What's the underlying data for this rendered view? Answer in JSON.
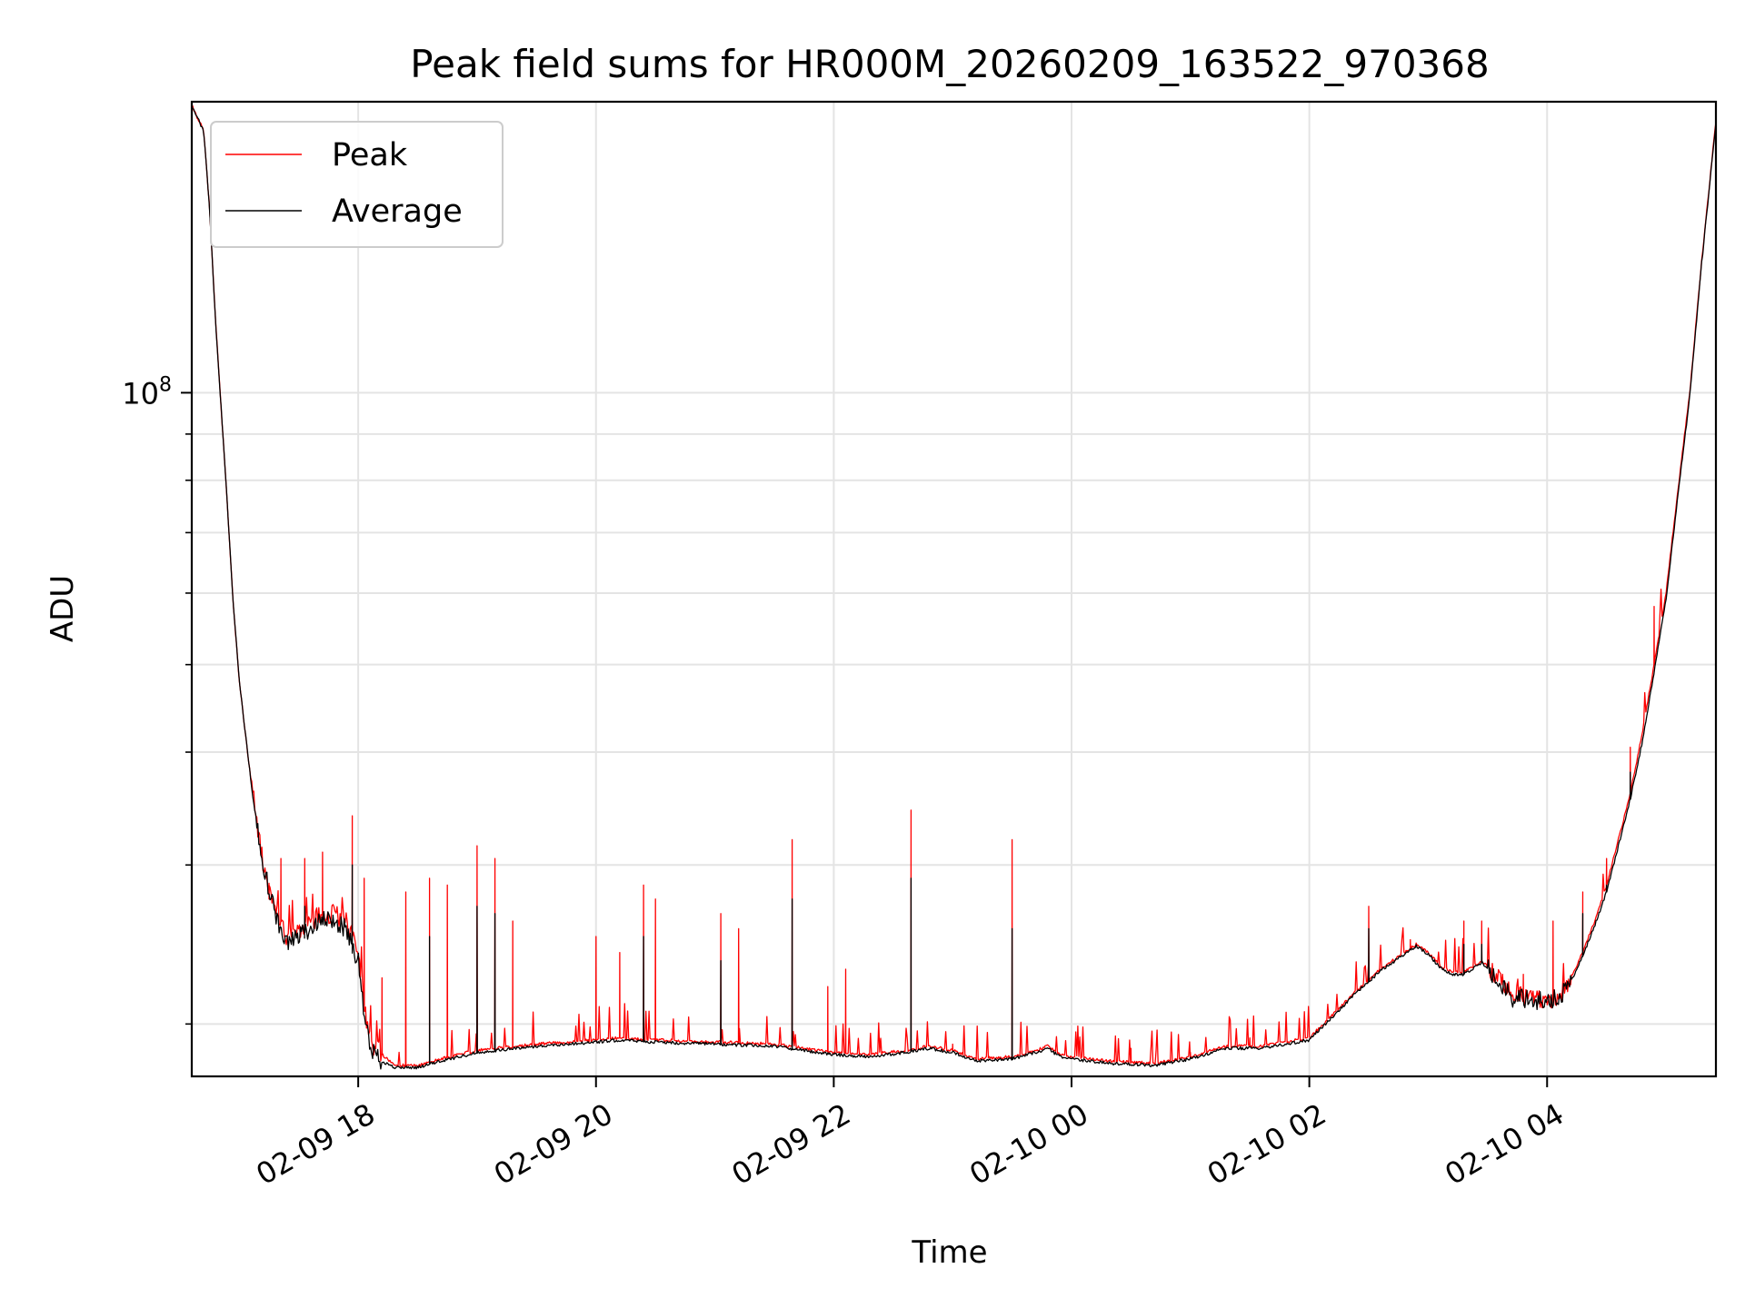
{
  "chart_data": {
    "type": "line",
    "title": "Peak field sums for HR000M_20260209_163522_970368",
    "xlabel": "Time",
    "ylabel": "ADU",
    "yscale": "log",
    "ylim": [
      17500000,
      210000000
    ],
    "x_unit": "hours since 2026-02-09 00:00",
    "xlim": [
      16.6,
      29.42
    ],
    "x_ticks": [
      {
        "value": 18,
        "label": "02-09 18"
      },
      {
        "value": 20,
        "label": "02-09 20"
      },
      {
        "value": 22,
        "label": "02-09 22"
      },
      {
        "value": 24,
        "label": "02-10 00"
      },
      {
        "value": 26,
        "label": "02-10 02"
      },
      {
        "value": 28,
        "label": "02-10 04"
      }
    ],
    "y_major_ticks": [
      {
        "value": 100000000,
        "base": "10",
        "exponent": "8"
      }
    ],
    "y_minor_ticks": [
      20000000,
      30000000,
      40000000,
      50000000,
      60000000,
      70000000,
      80000000,
      90000000
    ],
    "grid": true,
    "legend_position": "top-left",
    "series": [
      {
        "name": "Peak",
        "color": "#ff0000",
        "baseline": [
          [
            16.6,
            208000000
          ],
          [
            16.7,
            195000000
          ],
          [
            16.75,
            160000000
          ],
          [
            16.8,
            120000000
          ],
          [
            16.85,
            95000000
          ],
          [
            16.9,
            75000000
          ],
          [
            16.95,
            58000000
          ],
          [
            17.0,
            48000000
          ],
          [
            17.05,
            42000000
          ],
          [
            17.1,
            37000000
          ],
          [
            17.2,
            30000000
          ],
          [
            17.3,
            27000000
          ],
          [
            17.4,
            25000000
          ],
          [
            17.5,
            25500000
          ],
          [
            17.6,
            26000000
          ],
          [
            17.7,
            26500000
          ],
          [
            17.8,
            26500000
          ],
          [
            17.9,
            26000000
          ],
          [
            18.0,
            24000000
          ],
          [
            18.05,
            21000000
          ],
          [
            18.1,
            19000000
          ],
          [
            18.2,
            18500000
          ],
          [
            18.3,
            18000000
          ],
          [
            18.5,
            18000000
          ],
          [
            18.7,
            18300000
          ],
          [
            19.0,
            18700000
          ],
          [
            19.5,
            19000000
          ],
          [
            20.0,
            19200000
          ],
          [
            20.2,
            19300000
          ],
          [
            20.5,
            19200000
          ],
          [
            21.0,
            19100000
          ],
          [
            21.5,
            19000000
          ],
          [
            22.0,
            18600000
          ],
          [
            22.3,
            18500000
          ],
          [
            22.6,
            18700000
          ],
          [
            22.8,
            18900000
          ],
          [
            23.0,
            18700000
          ],
          [
            23.2,
            18300000
          ],
          [
            23.5,
            18400000
          ],
          [
            23.7,
            18700000
          ],
          [
            23.8,
            18900000
          ],
          [
            23.9,
            18500000
          ],
          [
            24.0,
            18400000
          ],
          [
            24.3,
            18200000
          ],
          [
            24.7,
            18100000
          ],
          [
            25.0,
            18400000
          ],
          [
            25.3,
            18900000
          ],
          [
            25.6,
            18900000
          ],
          [
            26.0,
            19300000
          ],
          [
            26.2,
            20500000
          ],
          [
            26.4,
            21800000
          ],
          [
            26.6,
            23000000
          ],
          [
            26.8,
            24000000
          ],
          [
            26.9,
            24500000
          ],
          [
            27.0,
            24000000
          ],
          [
            27.1,
            23200000
          ],
          [
            27.2,
            22800000
          ],
          [
            27.3,
            22800000
          ],
          [
            27.45,
            23500000
          ],
          [
            27.55,
            22800000
          ],
          [
            27.65,
            22000000
          ],
          [
            27.7,
            21500000
          ],
          [
            27.8,
            21500000
          ],
          [
            27.9,
            21300000
          ],
          [
            28.0,
            21300000
          ],
          [
            28.1,
            21500000
          ],
          [
            28.2,
            22500000
          ],
          [
            28.3,
            24000000
          ],
          [
            28.4,
            26000000
          ],
          [
            28.5,
            28500000
          ],
          [
            28.6,
            32000000
          ],
          [
            28.7,
            36000000
          ],
          [
            28.8,
            42000000
          ],
          [
            28.9,
            50000000
          ],
          [
            29.0,
            60000000
          ],
          [
            29.1,
            78000000
          ],
          [
            29.2,
            100000000
          ],
          [
            29.3,
            140000000
          ],
          [
            29.42,
            200000000
          ]
        ],
        "spikes": [
          [
            17.25,
            27500000
          ],
          [
            17.35,
            30500000
          ],
          [
            17.55,
            30500000
          ],
          [
            17.7,
            31000000
          ],
          [
            17.95,
            34000000
          ],
          [
            18.05,
            29000000
          ],
          [
            18.2,
            22500000
          ],
          [
            18.4,
            28000000
          ],
          [
            18.6,
            29000000
          ],
          [
            18.75,
            28500000
          ],
          [
            19.0,
            31500000
          ],
          [
            19.15,
            30500000
          ],
          [
            19.3,
            26000000
          ],
          [
            20.0,
            25000000
          ],
          [
            20.2,
            24000000
          ],
          [
            20.4,
            28500000
          ],
          [
            20.5,
            27500000
          ],
          [
            21.05,
            26500000
          ],
          [
            21.2,
            25500000
          ],
          [
            21.65,
            32000000
          ],
          [
            21.95,
            22000000
          ],
          [
            22.1,
            23000000
          ],
          [
            22.65,
            34500000
          ],
          [
            23.0,
            19000000
          ],
          [
            23.5,
            32000000
          ],
          [
            24.5,
            18800000
          ],
          [
            25.0,
            18600000
          ],
          [
            25.5,
            19300000
          ],
          [
            26.5,
            27000000
          ],
          [
            26.85,
            24800000
          ],
          [
            27.3,
            26000000
          ],
          [
            27.45,
            26000000
          ],
          [
            27.8,
            22700000
          ],
          [
            28.05,
            26000000
          ],
          [
            28.3,
            28000000
          ],
          [
            28.5,
            30500000
          ],
          [
            28.7,
            40500000
          ],
          [
            28.9,
            58000000
          ]
        ]
      },
      {
        "name": "Average",
        "color": "#000000",
        "baseline": [
          [
            16.6,
            208000000
          ],
          [
            16.7,
            195000000
          ],
          [
            16.75,
            160000000
          ],
          [
            16.8,
            120000000
          ],
          [
            16.85,
            95000000
          ],
          [
            16.9,
            75000000
          ],
          [
            16.95,
            58000000
          ],
          [
            17.0,
            48000000
          ],
          [
            17.05,
            42000000
          ],
          [
            17.1,
            37000000
          ],
          [
            17.2,
            30000000
          ],
          [
            17.3,
            26500000
          ],
          [
            17.4,
            24500000
          ],
          [
            17.5,
            25000000
          ],
          [
            17.6,
            25500000
          ],
          [
            17.7,
            26000000
          ],
          [
            17.8,
            26000000
          ],
          [
            17.9,
            25500000
          ],
          [
            18.0,
            23500000
          ],
          [
            18.05,
            20500000
          ],
          [
            18.1,
            18800000
          ],
          [
            18.2,
            18200000
          ],
          [
            18.3,
            17900000
          ],
          [
            18.5,
            17900000
          ],
          [
            18.7,
            18200000
          ],
          [
            19.0,
            18600000
          ],
          [
            19.5,
            18900000
          ],
          [
            20.0,
            19100000
          ],
          [
            20.2,
            19200000
          ],
          [
            20.5,
            19100000
          ],
          [
            21.0,
            19000000
          ],
          [
            21.5,
            18900000
          ],
          [
            22.0,
            18500000
          ],
          [
            22.3,
            18400000
          ],
          [
            22.6,
            18600000
          ],
          [
            22.8,
            18800000
          ],
          [
            23.0,
            18600000
          ],
          [
            23.2,
            18200000
          ],
          [
            23.5,
            18300000
          ],
          [
            23.7,
            18600000
          ],
          [
            23.8,
            18800000
          ],
          [
            23.9,
            18400000
          ],
          [
            24.0,
            18300000
          ],
          [
            24.3,
            18100000
          ],
          [
            24.7,
            18000000
          ],
          [
            25.0,
            18300000
          ],
          [
            25.3,
            18800000
          ],
          [
            25.6,
            18800000
          ],
          [
            26.0,
            19200000
          ],
          [
            26.2,
            20400000
          ],
          [
            26.4,
            21700000
          ],
          [
            26.6,
            22900000
          ],
          [
            26.8,
            23900000
          ],
          [
            26.9,
            24400000
          ],
          [
            27.0,
            23900000
          ],
          [
            27.1,
            23100000
          ],
          [
            27.2,
            22700000
          ],
          [
            27.3,
            22700000
          ],
          [
            27.45,
            23400000
          ],
          [
            27.55,
            22700000
          ],
          [
            27.65,
            21900000
          ],
          [
            27.7,
            21400000
          ],
          [
            27.8,
            21400000
          ],
          [
            27.9,
            21200000
          ],
          [
            28.0,
            21200000
          ],
          [
            28.1,
            21400000
          ],
          [
            28.2,
            22300000
          ],
          [
            28.3,
            23800000
          ],
          [
            28.4,
            25700000
          ],
          [
            28.5,
            28000000
          ],
          [
            28.6,
            31500000
          ],
          [
            28.7,
            35500000
          ],
          [
            28.8,
            41000000
          ],
          [
            28.9,
            49000000
          ],
          [
            29.0,
            59000000
          ],
          [
            29.1,
            77000000
          ],
          [
            29.2,
            99000000
          ],
          [
            29.3,
            139000000
          ],
          [
            29.42,
            199000000
          ]
        ],
        "spikes": [
          [
            17.55,
            27000000
          ],
          [
            17.95,
            30000000
          ],
          [
            18.6,
            25000000
          ],
          [
            19.0,
            27000000
          ],
          [
            19.15,
            26500000
          ],
          [
            20.4,
            25000000
          ],
          [
            21.05,
            23500000
          ],
          [
            21.65,
            27500000
          ],
          [
            22.65,
            29000000
          ],
          [
            23.5,
            25500000
          ],
          [
            26.5,
            25500000
          ],
          [
            27.3,
            24500000
          ],
          [
            27.45,
            24500000
          ],
          [
            28.3,
            26500000
          ],
          [
            28.5,
            28500000
          ],
          [
            28.7,
            38000000
          ]
        ]
      }
    ]
  }
}
